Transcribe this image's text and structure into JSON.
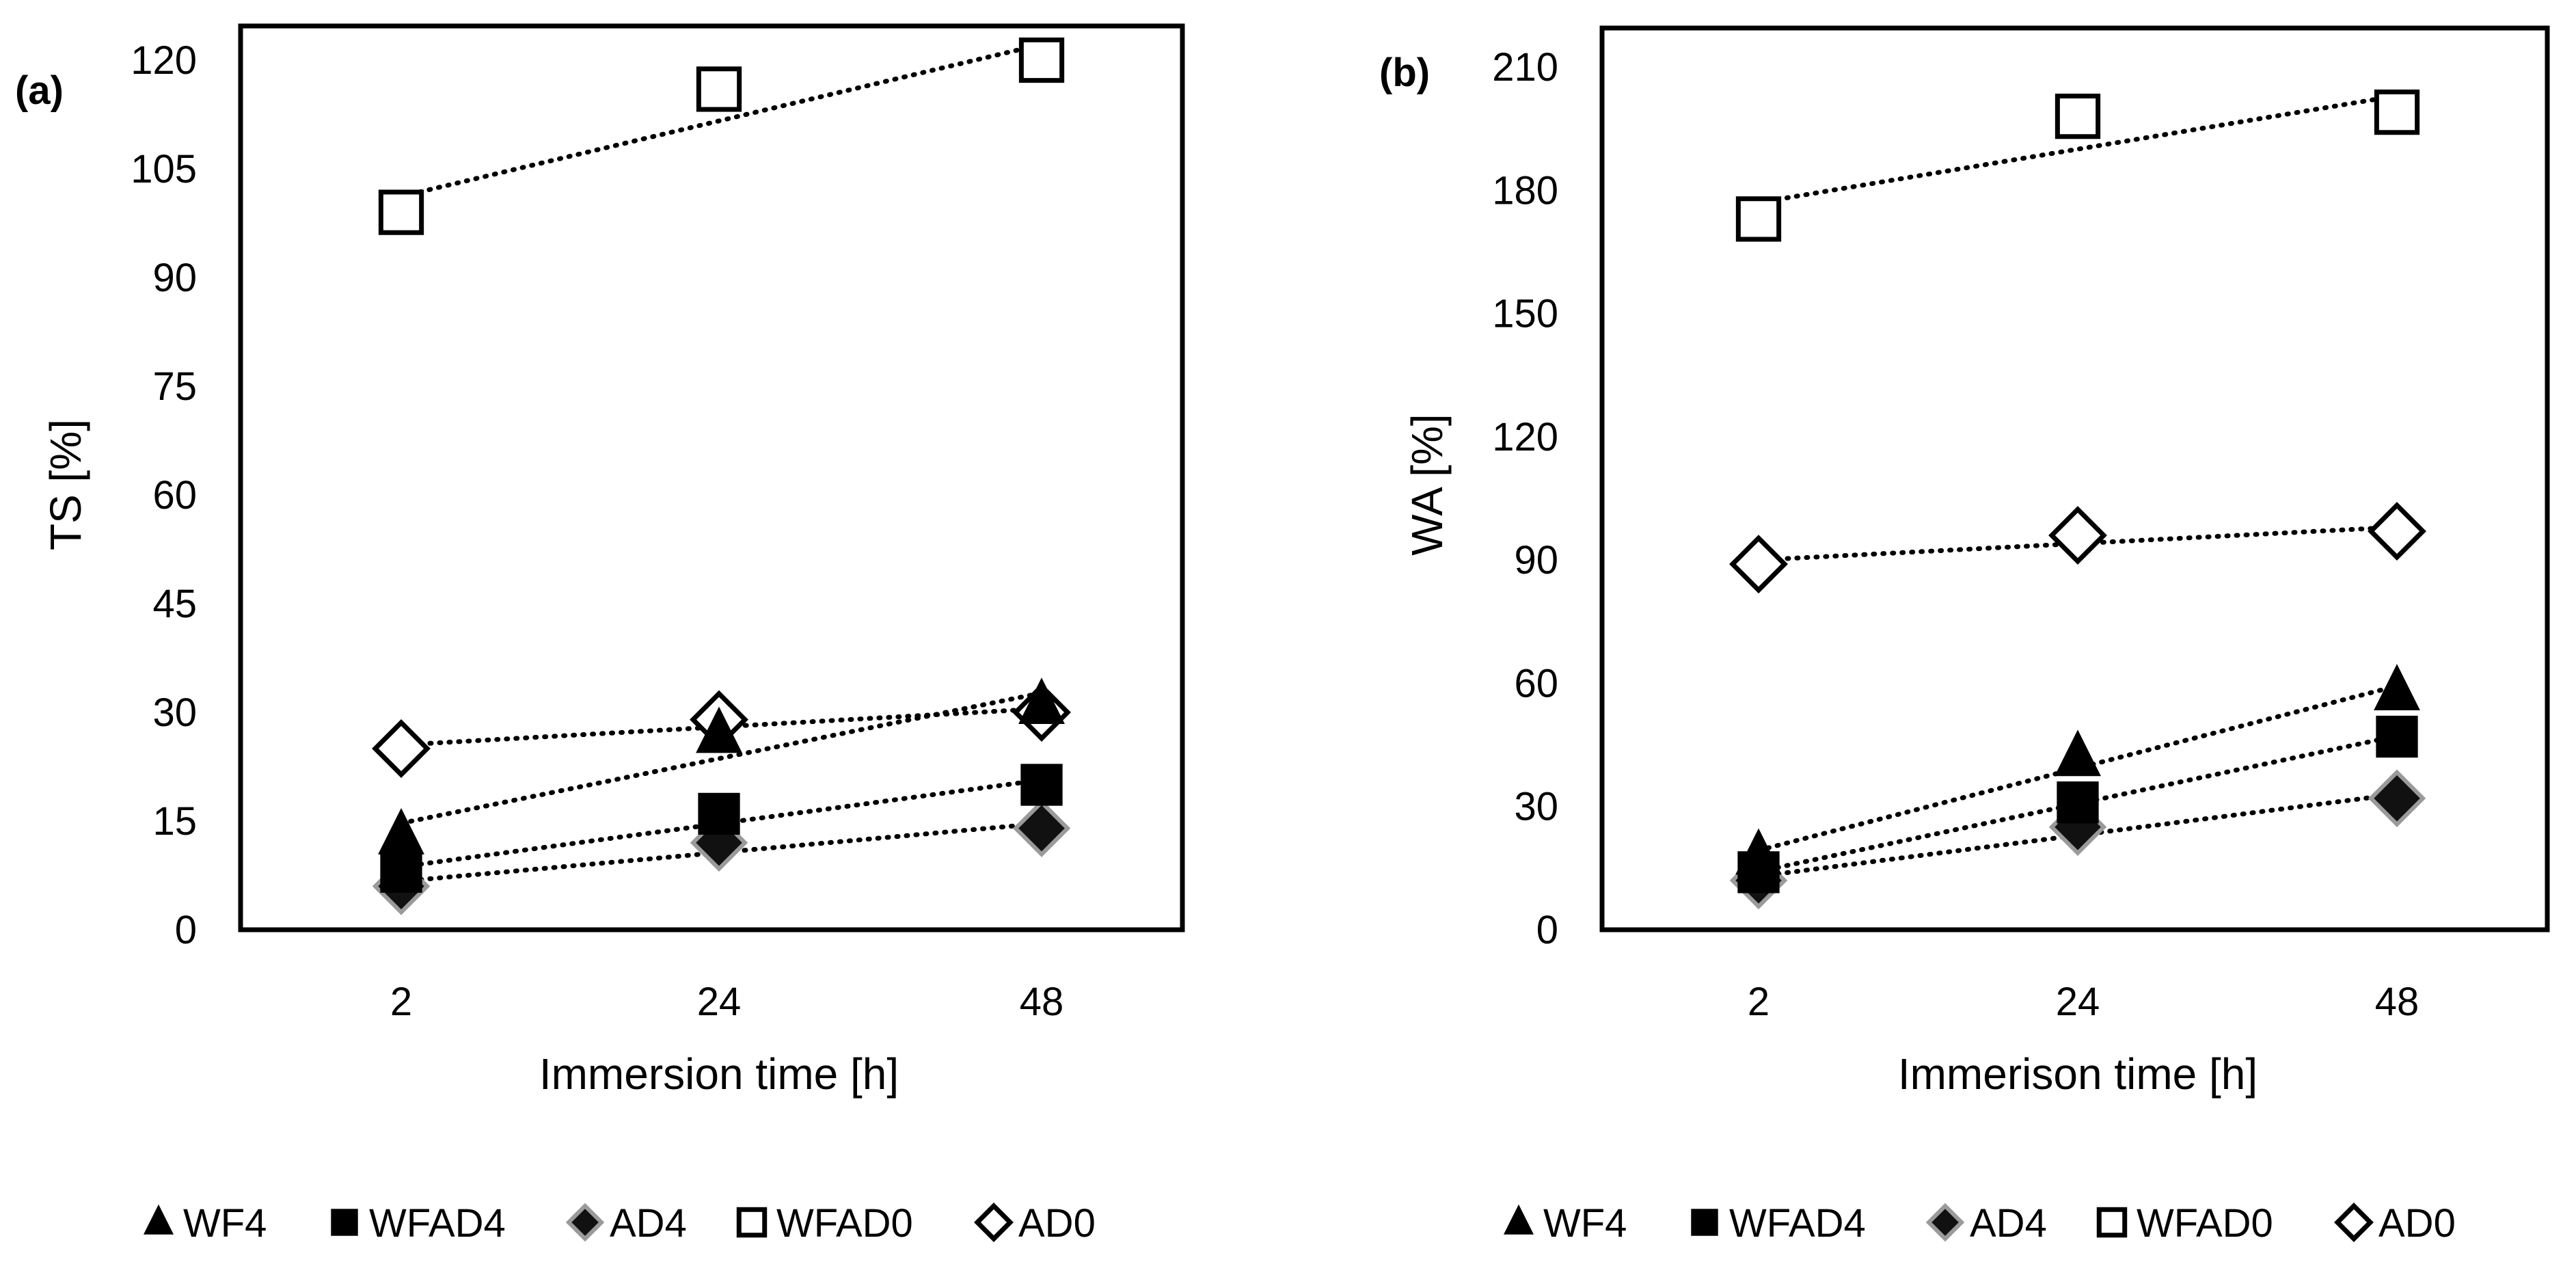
{
  "chart_data": [
    {
      "type": "scatter",
      "panel_label": "(a)",
      "xlabel": "Immersion time [h]",
      "ylabel": "TS [%]",
      "categories": [
        "2",
        "24",
        "48"
      ],
      "ylim": [
        0,
        120
      ],
      "yticks": [
        0,
        15,
        30,
        45,
        60,
        75,
        90,
        105,
        120
      ],
      "grid": false,
      "trendlines": "linear, dotted",
      "legend_position": "bottom",
      "series": [
        {
          "name": "WF4",
          "marker": "triangle",
          "values": [
            13,
            27,
            31
          ]
        },
        {
          "name": "WFAD4",
          "marker": "square-filled",
          "values": [
            8,
            16,
            20
          ]
        },
        {
          "name": "AD4",
          "marker": "diamond-filled",
          "values": [
            6,
            12,
            14
          ]
        },
        {
          "name": "WFAD0",
          "marker": "square-open",
          "values": [
            99,
            116,
            120
          ]
        },
        {
          "name": "AD0",
          "marker": "diamond-open",
          "values": [
            25,
            29,
            30
          ]
        }
      ]
    },
    {
      "type": "scatter",
      "panel_label": "(b)",
      "xlabel": "Immerison time [h]",
      "ylabel": "WA [%]",
      "categories": [
        "2",
        "24",
        "48"
      ],
      "ylim": [
        0,
        210
      ],
      "yticks": [
        0,
        30,
        60,
        90,
        120,
        150,
        180,
        210
      ],
      "grid": false,
      "trendlines": "linear, dotted",
      "legend_position": "bottom",
      "series": [
        {
          "name": "WF4",
          "marker": "triangle",
          "values": [
            18,
            42,
            58
          ]
        },
        {
          "name": "WFAD4",
          "marker": "square-filled",
          "values": [
            14,
            31,
            47
          ]
        },
        {
          "name": "AD4",
          "marker": "diamond-filled",
          "values": [
            12,
            25,
            32
          ]
        },
        {
          "name": "WFAD0",
          "marker": "square-open",
          "values": [
            173,
            198,
            199
          ]
        },
        {
          "name": "AD0",
          "marker": "diamond-open",
          "values": [
            89,
            96,
            97
          ]
        }
      ]
    }
  ]
}
